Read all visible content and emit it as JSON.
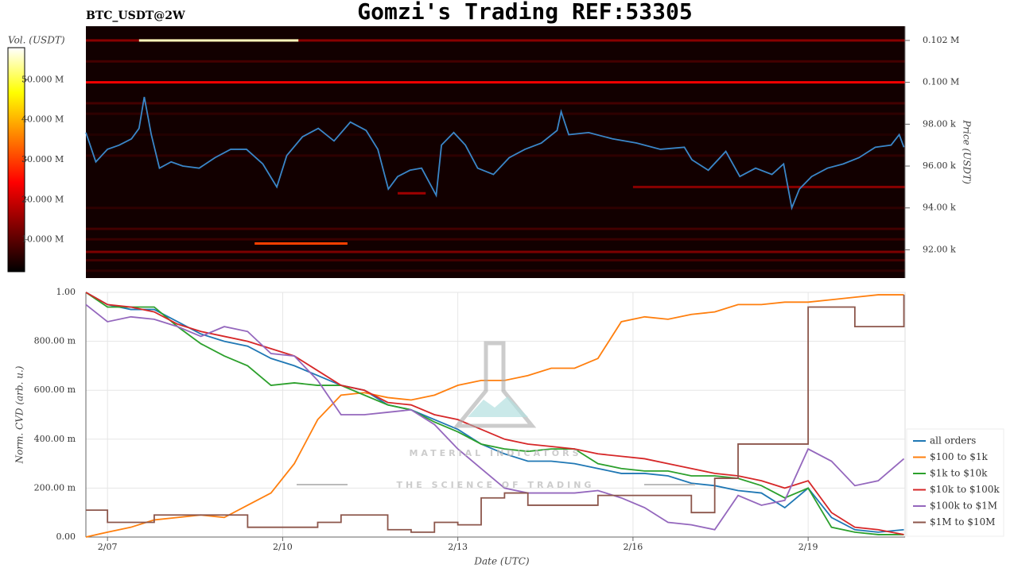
{
  "title": "Gomzi's Trading REF:53305",
  "watermark": {
    "name": "MATERIAL INDICATORS",
    "tagline": "THE SCIENCE OF TRADING"
  },
  "chart_data": [
    {
      "type": "heatmap",
      "title": "BTC_USDT@2W",
      "colorbar_label": "Vol. (USDT)",
      "clim": [
        2,
        58
      ],
      "cticks": [
        {
          "value": 10,
          "label": "10.000 M"
        },
        {
          "value": 20,
          "label": "20.000 M"
        },
        {
          "value": 30,
          "label": "30.000 M"
        },
        {
          "value": 40,
          "label": "40.000 M"
        },
        {
          "value": 50,
          "label": "50.000 M"
        }
      ],
      "ylabel": "Price (USDT)",
      "yaxis_position": "right",
      "ylim": [
        90650,
        102680
      ],
      "yticks": [
        {
          "value": 92000,
          "label": "92.00 k"
        },
        {
          "value": 94000,
          "label": "94.00 k"
        },
        {
          "value": 96000,
          "label": "96.00 k"
        },
        {
          "value": 98000,
          "label": "98.00 k"
        },
        {
          "value": 100000,
          "label": "0.100 M"
        },
        {
          "value": 102000,
          "label": "0.102 M"
        }
      ],
      "xlim": [
        6.63,
        20.66
      ],
      "bands": [
        {
          "price": 102000,
          "x": [
            6.63,
            20.66
          ],
          "volume": 14
        },
        {
          "price": 102000,
          "x": [
            7.54,
            10.27
          ],
          "volume": 55
        },
        {
          "price": 101000,
          "x": [
            6.63,
            20.66
          ],
          "volume": 8
        },
        {
          "price": 100000,
          "x": [
            6.63,
            20.66
          ],
          "volume": 24
        },
        {
          "price": 99000,
          "x": [
            6.63,
            20.66
          ],
          "volume": 8
        },
        {
          "price": 98500,
          "x": [
            6.63,
            20.66
          ],
          "volume": 6
        },
        {
          "price": 97500,
          "x": [
            6.63,
            20.66
          ],
          "volume": 5
        },
        {
          "price": 96500,
          "x": [
            6.63,
            20.66
          ],
          "volume": 6
        },
        {
          "price": 95000,
          "x": [
            16.0,
            20.66
          ],
          "volume": 14
        },
        {
          "price": 94700,
          "x": [
            11.97,
            12.45
          ],
          "volume": 16
        },
        {
          "price": 94000,
          "x": [
            6.63,
            20.66
          ],
          "volume": 6
        },
        {
          "price": 93000,
          "x": [
            6.63,
            20.66
          ],
          "volume": 8
        },
        {
          "price": 92500,
          "x": [
            6.63,
            20.66
          ],
          "volume": 7
        },
        {
          "price": 92300,
          "x": [
            9.52,
            11.11
          ],
          "volume": 30
        },
        {
          "price": 91900,
          "x": [
            6.63,
            20.66
          ],
          "volume": 13
        },
        {
          "price": 91500,
          "x": [
            6.63,
            20.66
          ],
          "volume": 8
        },
        {
          "price": 91000,
          "x": [
            6.63,
            20.66
          ],
          "volume": 6
        }
      ],
      "x": [
        6.63,
        6.8,
        7.0,
        7.2,
        7.41,
        7.54,
        7.63,
        7.75,
        7.89,
        8.09,
        8.29,
        8.57,
        8.84,
        9.11,
        9.38,
        9.66,
        9.9,
        10.07,
        10.34,
        10.61,
        10.88,
        11.16,
        11.43,
        11.63,
        11.81,
        11.97,
        12.18,
        12.38,
        12.63,
        12.72,
        12.93,
        13.13,
        13.34,
        13.61,
        13.88,
        14.15,
        14.43,
        14.7,
        14.77,
        14.9,
        15.24,
        15.65,
        16.06,
        16.47,
        16.88,
        17.01,
        17.29,
        17.59,
        17.83,
        18.1,
        18.38,
        18.58,
        18.72,
        18.85,
        19.06,
        19.33,
        19.6,
        19.87,
        20.15,
        20.42,
        20.56,
        20.64
      ],
      "series": [
        {
          "color": "#3a86c8",
          "values": [
            97600,
            96200,
            96800,
            97000,
            97300,
            97800,
            99300,
            97500,
            95900,
            96200,
            96000,
            95900,
            96400,
            96800,
            96800,
            96100,
            95000,
            96500,
            97400,
            97800,
            97200,
            98100,
            97700,
            96800,
            94900,
            95500,
            95800,
            95900,
            94600,
            97000,
            97600,
            97000,
            95900,
            95600,
            96400,
            96800,
            97100,
            97700,
            98600,
            97500,
            97600,
            97300,
            97100,
            96800,
            96900,
            96300,
            95800,
            96700,
            95500,
            95900,
            95600,
            96100,
            94000,
            94900,
            95500,
            95900,
            96100,
            96400,
            96900,
            97000,
            97500,
            96900
          ]
        }
      ]
    },
    {
      "type": "line",
      "xlabel": "Date (UTC)",
      "ylabel": "Norm. CVD (arb. u.)",
      "xlim": [
        6.63,
        20.66
      ],
      "xticks": [
        {
          "value": 7,
          "label": "2/07"
        },
        {
          "value": 10,
          "label": "2/10"
        },
        {
          "value": 13,
          "label": "2/13"
        },
        {
          "value": 16,
          "label": "2/16"
        },
        {
          "value": 19,
          "label": "2/19"
        }
      ],
      "ylim": [
        0,
        1
      ],
      "yticks": [
        {
          "value": 0,
          "label": "0.00"
        },
        {
          "value": 0.2,
          "label": "200.00 m"
        },
        {
          "value": 0.4,
          "label": "400.00 m"
        },
        {
          "value": 0.6,
          "label": "600.00 m"
        },
        {
          "value": 0.8,
          "label": "800.00 m"
        },
        {
          "value": 1,
          "label": "1.00"
        }
      ],
      "grid": true,
      "legend": "right",
      "x": [
        6.63,
        7.0,
        7.4,
        7.8,
        8.2,
        8.6,
        9.0,
        9.4,
        9.8,
        10.2,
        10.6,
        11.0,
        11.4,
        11.8,
        12.2,
        12.6,
        13.0,
        13.4,
        13.8,
        14.2,
        14.6,
        15.0,
        15.4,
        15.8,
        16.2,
        16.6,
        17.0,
        17.4,
        17.8,
        18.2,
        18.6,
        19.0,
        19.4,
        19.8,
        20.2,
        20.64
      ],
      "series": [
        {
          "name": "all orders",
          "color": "#1f77b4",
          "values": [
            1.0,
            0.95,
            0.93,
            0.93,
            0.88,
            0.83,
            0.8,
            0.78,
            0.73,
            0.7,
            0.66,
            0.62,
            0.6,
            0.54,
            0.52,
            0.48,
            0.44,
            0.38,
            0.34,
            0.31,
            0.31,
            0.3,
            0.28,
            0.26,
            0.26,
            0.25,
            0.22,
            0.21,
            0.19,
            0.18,
            0.12,
            0.2,
            0.08,
            0.03,
            0.02,
            0.03
          ]
        },
        {
          "name": "$100 to $1k",
          "color": "#ff7f0e",
          "values": [
            0.0,
            0.02,
            0.04,
            0.07,
            0.08,
            0.09,
            0.08,
            0.13,
            0.18,
            0.3,
            0.48,
            0.58,
            0.59,
            0.57,
            0.56,
            0.58,
            0.62,
            0.64,
            0.64,
            0.66,
            0.69,
            0.69,
            0.73,
            0.88,
            0.9,
            0.89,
            0.91,
            0.92,
            0.95,
            0.95,
            0.96,
            0.96,
            0.97,
            0.98,
            0.99,
            0.99
          ]
        },
        {
          "name": "$1k to $10k",
          "color": "#2ca02c",
          "values": [
            1.0,
            0.94,
            0.94,
            0.94,
            0.86,
            0.79,
            0.74,
            0.7,
            0.62,
            0.63,
            0.62,
            0.62,
            0.58,
            0.54,
            0.52,
            0.47,
            0.43,
            0.38,
            0.36,
            0.35,
            0.36,
            0.36,
            0.3,
            0.28,
            0.27,
            0.27,
            0.25,
            0.25,
            0.24,
            0.21,
            0.16,
            0.2,
            0.04,
            0.02,
            0.01,
            0.01
          ]
        },
        {
          "name": "$10k to $100k",
          "color": "#d62728",
          "values": [
            1.0,
            0.95,
            0.94,
            0.92,
            0.87,
            0.84,
            0.82,
            0.8,
            0.77,
            0.74,
            0.68,
            0.62,
            0.6,
            0.55,
            0.54,
            0.5,
            0.48,
            0.44,
            0.4,
            0.38,
            0.37,
            0.36,
            0.34,
            0.33,
            0.32,
            0.3,
            0.28,
            0.26,
            0.25,
            0.23,
            0.2,
            0.23,
            0.1,
            0.04,
            0.03,
            0.01
          ]
        },
        {
          "name": "$100k to $1M",
          "color": "#9467bd",
          "values": [
            0.95,
            0.88,
            0.9,
            0.89,
            0.86,
            0.82,
            0.86,
            0.84,
            0.75,
            0.74,
            0.64,
            0.5,
            0.5,
            0.51,
            0.52,
            0.46,
            0.36,
            0.28,
            0.2,
            0.18,
            0.18,
            0.18,
            0.19,
            0.16,
            0.12,
            0.06,
            0.05,
            0.03,
            0.17,
            0.13,
            0.15,
            0.36,
            0.31,
            0.21,
            0.23,
            0.32
          ]
        },
        {
          "name": "$1M to $10M",
          "color": "#8c564b",
          "step": true,
          "values": [
            0.11,
            0.06,
            0.06,
            0.09,
            0.09,
            0.09,
            0.09,
            0.04,
            0.04,
            0.04,
            0.06,
            0.09,
            0.09,
            0.03,
            0.02,
            0.06,
            0.05,
            0.16,
            0.18,
            0.13,
            0.13,
            0.13,
            0.17,
            0.17,
            0.17,
            0.17,
            0.1,
            0.24,
            0.38,
            0.38,
            0.38,
            0.94,
            0.94,
            0.86,
            0.86,
            0.99
          ]
        }
      ]
    }
  ]
}
